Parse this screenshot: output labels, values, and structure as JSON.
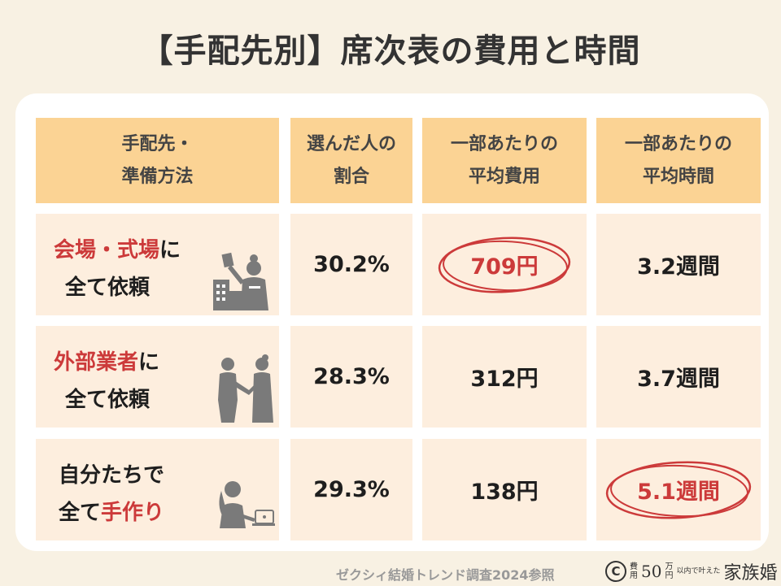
{
  "title": "【手配先別】席次表の費用と時間",
  "table": {
    "headers": [
      [
        "手配先・",
        "準備方法"
      ],
      [
        "選んだ人の",
        "割合"
      ],
      [
        "一部あたりの",
        "平均費用"
      ],
      [
        "一部あたりの",
        "平均時間"
      ]
    ],
    "rows": [
      {
        "label_line1_red": "会場・式場",
        "label_line1_black": "に",
        "label_line2_black": "全て依頼",
        "label_line2_red": "",
        "ratio": "30.2%",
        "cost": "709円",
        "time": "3.2週間",
        "icon": "venue-staff-icon"
      },
      {
        "label_line1_red": "外部業者",
        "label_line1_black": "に",
        "label_line2_black": "全て依頼",
        "label_line2_red": "",
        "ratio": "28.3%",
        "cost": "312円",
        "time": "3.7週間",
        "icon": "handshake-icon"
      },
      {
        "label_line1_red": "",
        "label_line1_black": "自分たちで",
        "label_line2_black": "全て",
        "label_line2_red": "手作り",
        "ratio": "29.3%",
        "cost": "138円",
        "time": "5.1週間",
        "icon": "laptop-person-icon"
      }
    ]
  },
  "highlight_color": "#cc3a3a",
  "header_color": "#fbd394",
  "cell_color": "#fdeede",
  "footer": "ゼクシィ結婚トレンド調査2024参照",
  "brand": {
    "copyright": "C",
    "small_top": "費",
    "small_bottom": "用",
    "amount": "50",
    "unit_top": "万",
    "unit_bottom": "円",
    "tagline": "以内で叶えた",
    "name": "家族婚"
  }
}
